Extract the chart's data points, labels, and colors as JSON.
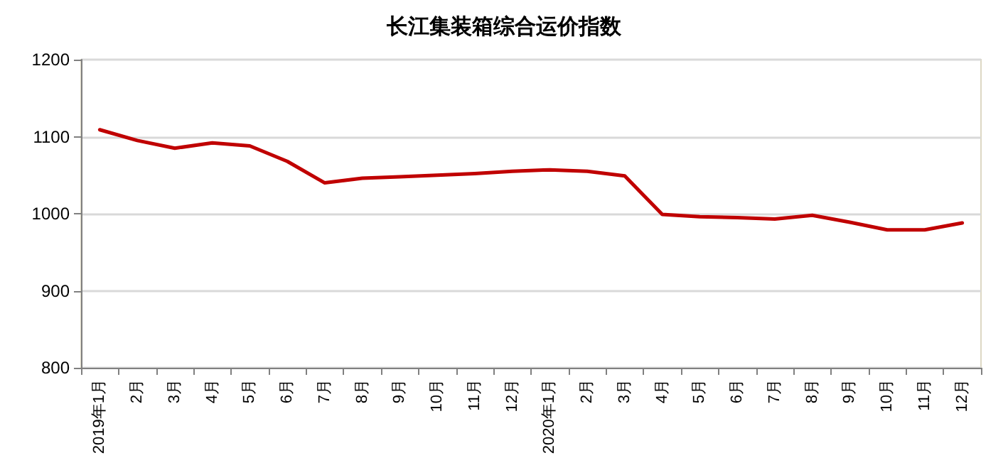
{
  "chart_data": {
    "type": "line",
    "title": "长江集装箱综合运价指数",
    "categories": [
      "2019年1月",
      "2月",
      "3月",
      "4月",
      "5月",
      "6月",
      "7月",
      "8月",
      "9月",
      "10月",
      "11月",
      "12月",
      "2020年1月",
      "2月",
      "3月",
      "4月",
      "5月",
      "6月",
      "7月",
      "8月",
      "9月",
      "10月",
      "11月",
      "12月"
    ],
    "series": [
      {
        "color": "#c00000",
        "values": [
          1109,
          1095,
          1085,
          1092,
          1088,
          1068,
          1040,
          1046,
          1048,
          1050,
          1052,
          1055,
          1057,
          1055,
          1049,
          999,
          996,
          995,
          993,
          998,
          989,
          979,
          979,
          988
        ]
      }
    ],
    "ylim": [
      800,
      1200
    ],
    "yticks": [
      800,
      900,
      1000,
      1100,
      1200
    ],
    "grid": "y",
    "marker": "none",
    "line_style": "solid"
  }
}
